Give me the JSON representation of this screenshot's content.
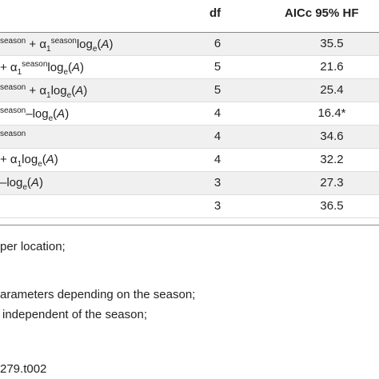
{
  "table": {
    "headers": {
      "df": "df",
      "aicc": "AICc 95% HF"
    },
    "rows": [
      {
        "model": [
          {
            "t": "season",
            "s": "sup"
          },
          {
            "t": " + α"
          },
          {
            "t": "1",
            "s": "sub"
          },
          {
            "t": "season",
            "s": "sup"
          },
          {
            "t": "log"
          },
          {
            "t": "e",
            "s": "sub"
          },
          {
            "t": "("
          },
          {
            "t": "A",
            "s": "i"
          },
          {
            "t": ")"
          }
        ],
        "df": "6",
        "aicc": "35.5"
      },
      {
        "model": [
          {
            "t": "+ α"
          },
          {
            "t": "1",
            "s": "sub"
          },
          {
            "t": "season",
            "s": "sup"
          },
          {
            "t": "log"
          },
          {
            "t": "e",
            "s": "sub"
          },
          {
            "t": "("
          },
          {
            "t": "A",
            "s": "i"
          },
          {
            "t": ")"
          }
        ],
        "df": "5",
        "aicc": "21.6"
      },
      {
        "model": [
          {
            "t": "season",
            "s": "sup"
          },
          {
            "t": " + α"
          },
          {
            "t": "1",
            "s": "sub"
          },
          {
            "t": "log"
          },
          {
            "t": "e",
            "s": "sub"
          },
          {
            "t": "("
          },
          {
            "t": "A",
            "s": "i"
          },
          {
            "t": ")"
          }
        ],
        "df": "5",
        "aicc": "25.4"
      },
      {
        "model": [
          {
            "t": "season",
            "s": "sup"
          },
          {
            "t": "–log"
          },
          {
            "t": "e",
            "s": "sub"
          },
          {
            "t": "("
          },
          {
            "t": "A",
            "s": "i"
          },
          {
            "t": ")"
          }
        ],
        "df": "4",
        "aicc": "16.4*"
      },
      {
        "model": [
          {
            "t": "season",
            "s": "sup"
          }
        ],
        "df": "4",
        "aicc": "34.6"
      },
      {
        "model": [
          {
            "t": "+ α"
          },
          {
            "t": "1",
            "s": "sub"
          },
          {
            "t": "log"
          },
          {
            "t": "e",
            "s": "sub"
          },
          {
            "t": "("
          },
          {
            "t": "A",
            "s": "i"
          },
          {
            "t": ")"
          }
        ],
        "df": "4",
        "aicc": "32.2"
      },
      {
        "model": [
          {
            "t": "–log"
          },
          {
            "t": "e",
            "s": "sub"
          },
          {
            "t": "("
          },
          {
            "t": "A",
            "s": "i"
          },
          {
            "t": ")"
          }
        ],
        "df": "3",
        "aicc": "27.3"
      },
      {
        "model": [],
        "df": "3",
        "aicc": "36.5"
      }
    ],
    "notes": [
      "per location;",
      "arameters depending on the season;",
      "independent of the season;",
      "279.t002"
    ]
  }
}
